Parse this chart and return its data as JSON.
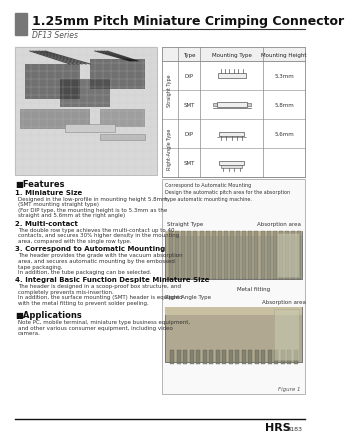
{
  "title": "1.25mm Pitch Miniature Crimping Connector",
  "series": "DF13 Series",
  "bg_color": "#ffffff",
  "header_bar_color": "#777777",
  "brand": "HRS",
  "page_num": "B183",
  "features_title": "■Features",
  "feature1_bold": "1. Miniature Size",
  "feature1_text": "Designed in the low-profile in mounting height 5.8mm.\n(SMT mounting straight type)\n(For DIP type, the mounting height is to 5.3mm as the\nstraight and 5.6mm at the right angle)",
  "feature2_bold": "2. Multi-contact",
  "feature2_text": "The double row type achieves the multi-contact up to 40\ncontacts, and secures 30% higher density in the mounting\narea, compared with the single row type.",
  "feature3_bold": "3. Correspond to Automatic Mounting",
  "feature3_text": "The header provides the grade with the vacuum absorption\narea, and secures automatic mounting by the embossed\ntape packaging.\nIn addition, the tube packaging can be selected.",
  "feature4_bold": "4. Integral Basic Function Despite Miniature Size",
  "feature4_text": "The header is designed in a scoop-proof box structure, and\ncompletely prevents mis-insertion.\nIn addition, the surface mounting (SMT) header is equipped\nwith the metal fitting to prevent solder peeling.",
  "applications_title": "■Applications",
  "applications_text": "Note PC, mobile terminal, miniature type business equipment,\nand other various consumer equipment, including video\ncamera.",
  "table_col0": "Type",
  "table_col1": "Mounting Type",
  "table_col2": "Mounting Height",
  "row0_type": "DIP",
  "row0_height": "5.3mm",
  "row1_type": "SMT",
  "row1_height": "5.8mm",
  "row2_type": "DIP",
  "row2_height": "5.6mm",
  "row3_type": "SMT",
  "row3_height": "",
  "straight_type_label": "Straight Type",
  "right_angle_type_label": "Right-Angle Type",
  "correspond_text": "Correspond to Automatic Mounting\nDesign the automatic pitch area for the absorption\ntype automatic mounting machine.",
  "fig_straight_label": "Straight Type",
  "fig_absorption1": "Absorption area",
  "fig_right_label": "Right Angle Type",
  "fig_metal": "Metal fitting",
  "fig_absorption2": "Absorption area",
  "figure_label": "Figure 1"
}
